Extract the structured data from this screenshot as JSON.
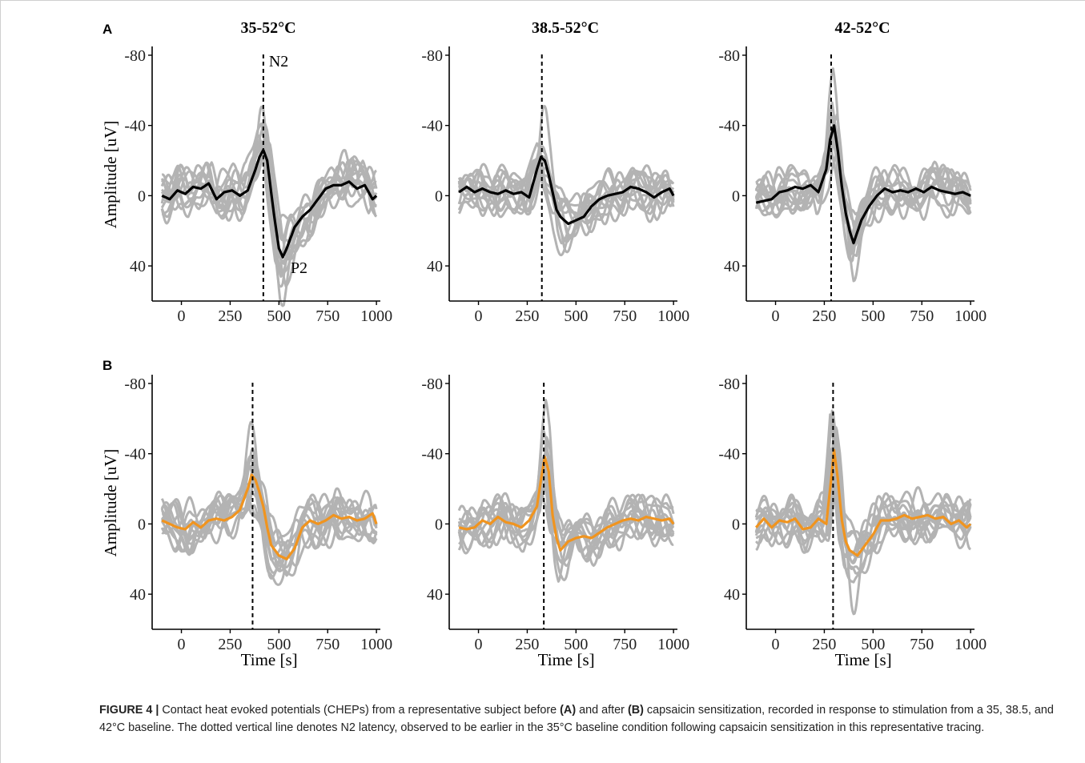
{
  "panel_labels": [
    "A",
    "B"
  ],
  "chart_data": [
    {
      "type": "line",
      "panel": "A",
      "title": "35-52°C",
      "ylabel": "Amplitude [uV]",
      "xlabel": "",
      "ylim": [
        60,
        -85
      ],
      "y_reversed": true,
      "xlim": [
        -150,
        1020
      ],
      "xticks": [
        0,
        250,
        500,
        750,
        1000
      ],
      "yticks": [
        -80,
        -40,
        0,
        40
      ],
      "n2_latency": 420,
      "annotations": [
        "N2",
        "P2"
      ],
      "mean_color": "#000000",
      "trial_color": "#b3b3b3",
      "n_trials": 12,
      "mean": {
        "x": [
          -100,
          -60,
          -20,
          20,
          60,
          100,
          140,
          180,
          220,
          260,
          300,
          340,
          380,
          400,
          420,
          440,
          460,
          480,
          500,
          520,
          540,
          580,
          620,
          660,
          700,
          740,
          780,
          820,
          860,
          900,
          940,
          980,
          1000
        ],
        "y": [
          0,
          2,
          -3,
          -1,
          -5,
          -4,
          -7,
          2,
          -2,
          -3,
          0,
          -3,
          -15,
          -22,
          -26,
          -20,
          -2,
          15,
          30,
          35,
          30,
          18,
          12,
          8,
          2,
          -4,
          -6,
          -6,
          -8,
          -4,
          -6,
          2,
          0
        ]
      },
      "trial_peaks": {
        "x": [
          420,
          520
        ],
        "y": [
          -56,
          50
        ]
      }
    },
    {
      "type": "line",
      "panel": "A",
      "title": "38.5-52°C",
      "ylabel": "",
      "xlabel": "",
      "ylim": [
        60,
        -85
      ],
      "y_reversed": true,
      "xlim": [
        -150,
        1020
      ],
      "xticks": [
        0,
        250,
        500,
        750,
        1000
      ],
      "yticks": [
        -80,
        -40,
        0,
        40
      ],
      "n2_latency": 325,
      "mean_color": "#000000",
      "trial_color": "#b3b3b3",
      "n_trials": 12,
      "mean": {
        "x": [
          -100,
          -60,
          -20,
          20,
          60,
          100,
          140,
          180,
          220,
          260,
          300,
          320,
          340,
          360,
          380,
          400,
          420,
          440,
          460,
          500,
          540,
          580,
          620,
          660,
          700,
          740,
          780,
          820,
          860,
          900,
          940,
          980,
          1000
        ],
        "y": [
          -2,
          -5,
          -2,
          -4,
          -2,
          -1,
          -3,
          -1,
          -2,
          1,
          -15,
          -22,
          -20,
          -12,
          -2,
          8,
          12,
          14,
          16,
          14,
          12,
          6,
          2,
          0,
          -1,
          -2,
          -5,
          -4,
          -2,
          1,
          -2,
          -4,
          0
        ]
      },
      "trial_peaks": {
        "x": [
          330,
          430
        ],
        "y": [
          -60,
          30
        ]
      }
    },
    {
      "type": "line",
      "panel": "A",
      "title": "42-52°C",
      "ylabel": "",
      "xlabel": "",
      "ylim": [
        60,
        -85
      ],
      "y_reversed": true,
      "xlim": [
        -150,
        1020
      ],
      "xticks": [
        0,
        250,
        500,
        750,
        1000
      ],
      "yticks": [
        -80,
        -40,
        0,
        40
      ],
      "n2_latency": 285,
      "mean_color": "#000000",
      "trial_color": "#b3b3b3",
      "n_trials": 12,
      "mean": {
        "x": [
          -100,
          -60,
          -20,
          20,
          60,
          100,
          140,
          180,
          220,
          260,
          280,
          300,
          320,
          340,
          360,
          380,
          400,
          440,
          480,
          520,
          560,
          600,
          640,
          680,
          720,
          760,
          800,
          840,
          880,
          920,
          960,
          1000
        ],
        "y": [
          4,
          3,
          2,
          -2,
          -3,
          -5,
          -4,
          -6,
          -2,
          -15,
          -32,
          -40,
          -25,
          -5,
          10,
          20,
          27,
          14,
          6,
          0,
          -4,
          -2,
          -3,
          -2,
          -4,
          -2,
          -5,
          -3,
          -2,
          -1,
          -2,
          0
        ]
      },
      "trial_peaks": {
        "x": [
          290,
          410
        ],
        "y": [
          -65,
          45
        ]
      }
    },
    {
      "type": "line",
      "panel": "B",
      "title": "",
      "ylabel": "Amplitude [uV]",
      "xlabel": "Time [s]",
      "ylim": [
        60,
        -85
      ],
      "y_reversed": true,
      "xlim": [
        -150,
        1020
      ],
      "xticks": [
        0,
        250,
        500,
        750,
        1000
      ],
      "yticks": [
        -80,
        -40,
        0,
        40
      ],
      "n2_latency": 365,
      "mean_color": "#f0941f",
      "trial_color": "#b3b3b3",
      "n_trials": 12,
      "mean": {
        "x": [
          -100,
          -60,
          -20,
          20,
          60,
          100,
          140,
          180,
          220,
          260,
          300,
          340,
          360,
          380,
          400,
          420,
          440,
          460,
          500,
          540,
          580,
          620,
          660,
          700,
          740,
          780,
          820,
          860,
          900,
          940,
          980,
          1000
        ],
        "y": [
          -2,
          0,
          2,
          3,
          -1,
          2,
          -2,
          -3,
          -2,
          -4,
          -8,
          -20,
          -28,
          -25,
          -18,
          -10,
          2,
          12,
          18,
          20,
          14,
          2,
          -2,
          0,
          -2,
          -5,
          -3,
          -4,
          -2,
          -3,
          -6,
          0
        ]
      },
      "trial_peaks": {
        "x": [
          360,
          500
        ],
        "y": [
          -73,
          38
        ]
      }
    },
    {
      "type": "line",
      "panel": "B",
      "title": "",
      "ylabel": "",
      "xlabel": "Time [s]",
      "ylim": [
        60,
        -85
      ],
      "y_reversed": true,
      "xlim": [
        -150,
        1020
      ],
      "xticks": [
        0,
        250,
        500,
        750,
        1000
      ],
      "yticks": [
        -80,
        -40,
        0,
        40
      ],
      "n2_latency": 335,
      "mean_color": "#f0941f",
      "trial_color": "#b3b3b3",
      "n_trials": 12,
      "mean": {
        "x": [
          -100,
          -60,
          -20,
          20,
          60,
          100,
          140,
          180,
          220,
          260,
          300,
          320,
          340,
          360,
          380,
          400,
          420,
          460,
          500,
          540,
          580,
          620,
          660,
          700,
          740,
          780,
          820,
          860,
          900,
          940,
          980,
          1000
        ],
        "y": [
          2,
          3,
          2,
          -2,
          0,
          -4,
          -1,
          0,
          2,
          -2,
          -10,
          -25,
          -38,
          -30,
          -5,
          8,
          15,
          10,
          8,
          7,
          8,
          5,
          2,
          0,
          -2,
          -3,
          -2,
          -4,
          -3,
          -2,
          -3,
          0
        ]
      },
      "trial_peaks": {
        "x": [
          340,
          450
        ],
        "y": [
          -78,
          45
        ]
      }
    },
    {
      "type": "line",
      "panel": "B",
      "title": "",
      "ylabel": "",
      "xlabel": "Time [s]",
      "ylim": [
        60,
        -85
      ],
      "y_reversed": true,
      "xlim": [
        -150,
        1020
      ],
      "xticks": [
        0,
        250,
        500,
        750,
        1000
      ],
      "yticks": [
        -80,
        -40,
        0,
        40
      ],
      "n2_latency": 295,
      "mean_color": "#f0941f",
      "trial_color": "#b3b3b3",
      "n_trials": 12,
      "mean": {
        "x": [
          -100,
          -60,
          -20,
          20,
          60,
          100,
          140,
          180,
          220,
          260,
          280,
          300,
          320,
          340,
          360,
          380,
          420,
          460,
          500,
          540,
          580,
          620,
          660,
          700,
          740,
          780,
          820,
          860,
          900,
          940,
          980,
          1000
        ],
        "y": [
          2,
          -3,
          2,
          -2,
          -1,
          -3,
          3,
          2,
          -3,
          0,
          -20,
          -42,
          -25,
          -2,
          10,
          15,
          18,
          12,
          6,
          -2,
          -2,
          -3,
          -5,
          -3,
          -4,
          -5,
          -3,
          -4,
          0,
          -2,
          2,
          0
        ]
      },
      "trial_peaks": {
        "x": [
          290,
          400
        ],
        "y": [
          -65,
          45
        ]
      }
    }
  ],
  "caption": {
    "label": "FIGURE 4 |",
    "text_1": " Contact heat evoked potentials (CHEPs) from a representative subject before ",
    "bold_a": "(A)",
    "text_2": " and after ",
    "bold_b": "(B)",
    "text_3": " capsaicin sensitization, recorded in response to stimulation from a 35, 38.5, and 42°C baseline. The dotted vertical line denotes N2 latency, observed to be earlier in the 35°C baseline condition following capsaicin sensitization in this representative tracing."
  }
}
